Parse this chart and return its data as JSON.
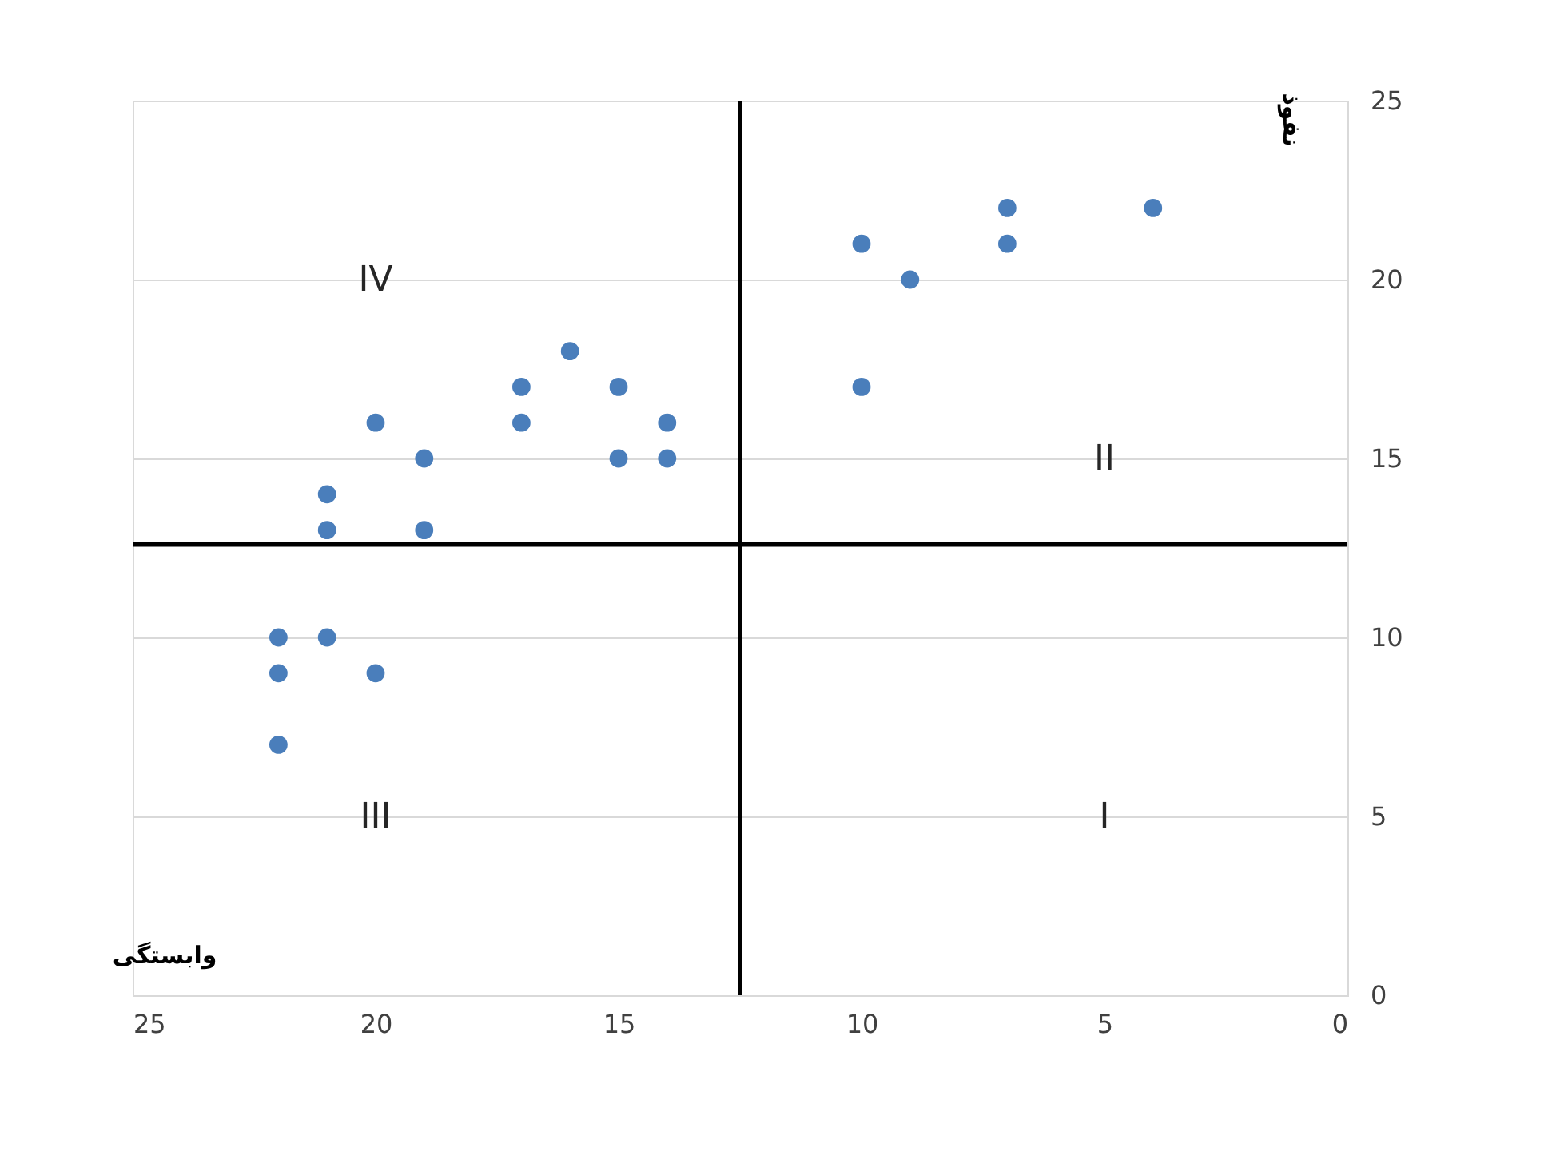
{
  "chart_data": {
    "type": "scatter",
    "xlabel": "وابستگی",
    "ylabel": "نفوذ",
    "x": [
      4,
      7,
      7,
      10,
      9,
      10,
      16,
      17,
      15,
      17,
      14,
      20,
      19,
      15,
      14,
      21,
      21,
      19,
      22,
      21,
      22,
      20,
      22
    ],
    "series": [
      {
        "color": "#4a7ebb",
        "values": [
          22,
          22,
          21,
          21,
          20,
          17,
          18,
          17,
          17,
          16,
          16,
          16,
          15,
          15,
          15,
          14,
          13,
          13,
          10,
          10,
          9,
          9,
          7
        ]
      }
    ],
    "xlim": [
      25,
      0
    ],
    "xticks": [
      25,
      20,
      15,
      10,
      5,
      0
    ],
    "ylim": [
      0,
      25
    ],
    "yticks": [
      0,
      5,
      10,
      15,
      20,
      25
    ],
    "grid": "y",
    "marker": "circle",
    "ref_lines": [
      {
        "axis": "x",
        "value": 12.5,
        "color": "#000000"
      },
      {
        "axis": "y",
        "value": 12.6,
        "color": "#000000"
      }
    ],
    "annotations": [
      "I",
      "II",
      "III",
      "IV"
    ]
  }
}
